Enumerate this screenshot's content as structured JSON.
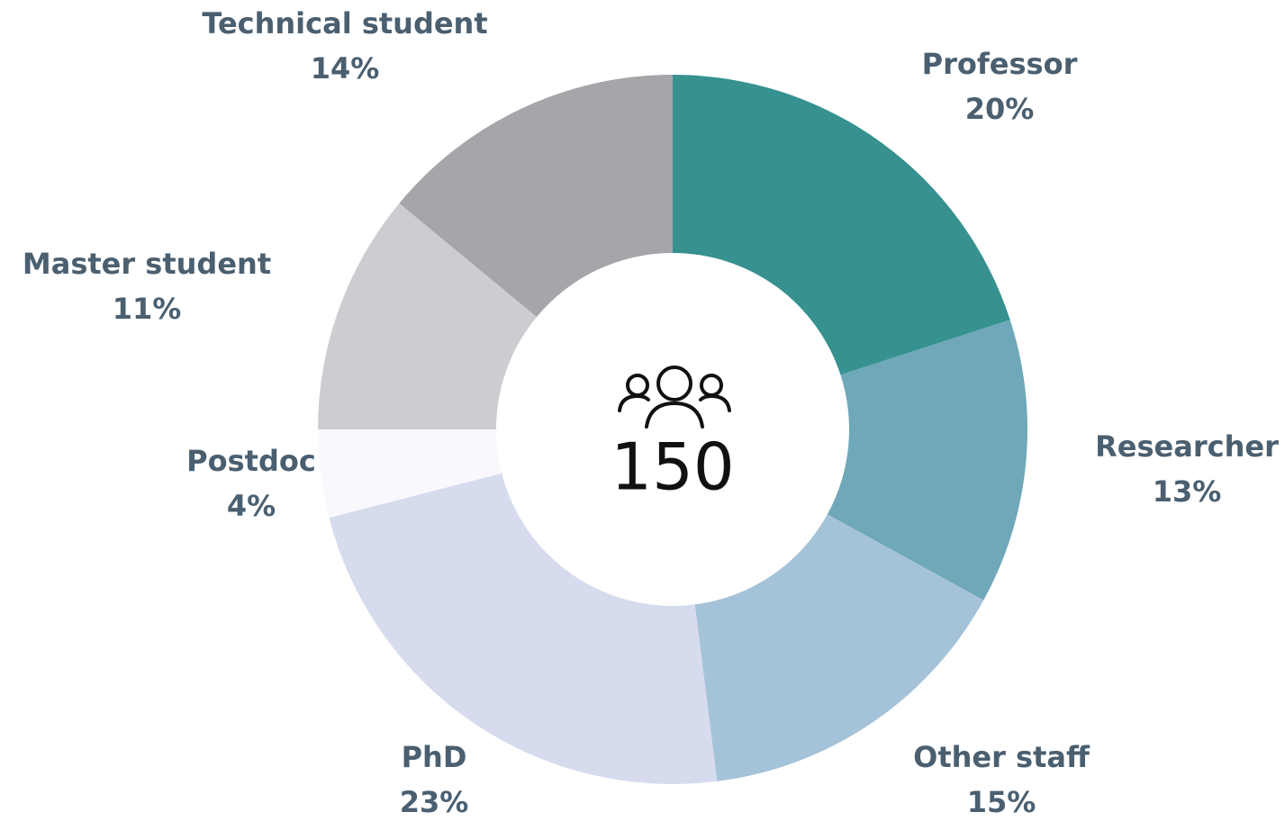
{
  "chart_data": {
    "type": "pie",
    "donut": true,
    "center_value": 150,
    "categories": [
      "Professor",
      "Researcher",
      "Other staff",
      "PhD",
      "Postdoc",
      "Master student",
      "Technical student"
    ],
    "values": [
      20,
      13,
      15,
      23,
      4,
      11,
      14
    ],
    "value_labels": [
      "20%",
      "13%",
      "15%",
      "23%",
      "4%",
      "11%",
      "14%"
    ],
    "colors": [
      "#36918f",
      "#6fa8b8",
      "#a5c3d8",
      "#d7dbee",
      "#f9f9fd",
      "#cdcdd1",
      "#a5a5aa"
    ]
  }
}
